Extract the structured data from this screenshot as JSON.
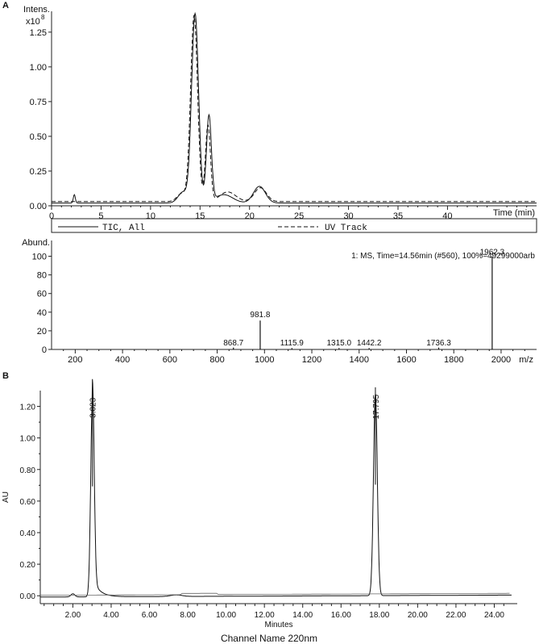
{
  "panels": {
    "a_label": "A",
    "b_label": "B"
  },
  "chart_data": [
    {
      "id": "A1",
      "type": "line",
      "ylabel_line1": "Intens.",
      "ylabel_line2": "x10",
      "ylabel_exponent": "8",
      "xlabel": "Time (min)",
      "xlim": [
        0,
        49
      ],
      "ylim": [
        0,
        1.4
      ],
      "xticks": [
        0,
        5,
        10,
        15,
        20,
        25,
        30,
        35,
        40
      ],
      "yticks": [
        0.0,
        0.25,
        0.5,
        0.75,
        1.0,
        1.25
      ],
      "ytick_labels": [
        "0.00",
        "0.25",
        "0.50",
        "0.75",
        "1.00",
        "1.25"
      ],
      "grid": false,
      "series": [
        {
          "name": "TIC, All",
          "baseline": 0.02,
          "peaks": [
            {
              "x": 14.5,
              "y": 1.36,
              "w": 0.35
            },
            {
              "x": 15.9,
              "y": 0.62,
              "w": 0.25
            },
            {
              "x": 13.3,
              "y": 0.08,
              "w": 0.5
            },
            {
              "x": 17.4,
              "y": 0.06,
              "w": 0.9
            },
            {
              "x": 21.0,
              "y": 0.12,
              "w": 0.6
            },
            {
              "x": 2.3,
              "y": 0.06,
              "w": 0.1
            }
          ]
        },
        {
          "name": "UV Track",
          "baseline": 0.03,
          "peaks": [
            {
              "x": 14.4,
              "y": 1.34,
              "w": 0.35
            },
            {
              "x": 15.8,
              "y": 0.55,
              "w": 0.25
            },
            {
              "x": 13.2,
              "y": 0.06,
              "w": 0.5
            },
            {
              "x": 17.8,
              "y": 0.07,
              "w": 0.8
            },
            {
              "x": 21.1,
              "y": 0.1,
              "w": 0.6
            }
          ]
        }
      ]
    },
    {
      "id": "A2",
      "type": "bar",
      "ylabel": "Abund.",
      "xlabel": "m/z",
      "annotation": "1: MS, Time=14.56min (#560), 100%=49299000arb",
      "xlim": [
        100,
        2150
      ],
      "ylim": [
        0,
        110
      ],
      "xticks": [
        200,
        400,
        600,
        800,
        1000,
        1200,
        1400,
        1600,
        1800,
        2000
      ],
      "yticks": [
        0,
        20,
        40,
        60,
        80,
        100
      ],
      "grid": false,
      "peaks": [
        {
          "x": 868.7,
          "y": 2,
          "label": "868.7"
        },
        {
          "x": 981.8,
          "y": 31,
          "label": "981.8"
        },
        {
          "x": 1115.9,
          "y": 1.5,
          "label": "1115.9"
        },
        {
          "x": 1315.0,
          "y": 1.5,
          "label": "1315.0"
        },
        {
          "x": 1442.2,
          "y": 1.5,
          "label": "1442.2"
        },
        {
          "x": 1736.3,
          "y": 2,
          "label": "1736.3"
        },
        {
          "x": 1962.3,
          "y": 100,
          "label": "1962.3"
        }
      ]
    },
    {
      "id": "B",
      "type": "line",
      "ylabel": "AU",
      "xlabel": "Minutes",
      "caption": "Channel Name 220nm",
      "xlim": [
        0.3,
        25.2
      ],
      "ylim": [
        -0.05,
        1.3
      ],
      "xticks": [
        2,
        4,
        6,
        8,
        10,
        12,
        14,
        16,
        18,
        20,
        22,
        24
      ],
      "xtick_labels": [
        "2.00",
        "4.00",
        "6.00",
        "8.00",
        "10.00",
        "12.00",
        "14.00",
        "16.00",
        "18.00",
        "20.00",
        "22.00",
        "24.00"
      ],
      "yticks": [
        0,
        0.2,
        0.4,
        0.6,
        0.8,
        1.0,
        1.2
      ],
      "ytick_labels": [
        "0.00",
        "0.20",
        "0.40",
        "0.60",
        "0.80",
        "1.00",
        "1.20"
      ],
      "grid": false,
      "series": [
        {
          "peaks": [
            {
              "x": 3.023,
              "y": 1.26,
              "w": 0.09,
              "label": "3.023"
            },
            {
              "x": 17.795,
              "y": 1.28,
              "w": 0.1,
              "label": "17.795"
            },
            {
              "x": 2.0,
              "y": 0.02,
              "w": 0.1
            },
            {
              "x": 7.4,
              "y": 0.01,
              "w": 0.3
            }
          ]
        }
      ]
    }
  ]
}
